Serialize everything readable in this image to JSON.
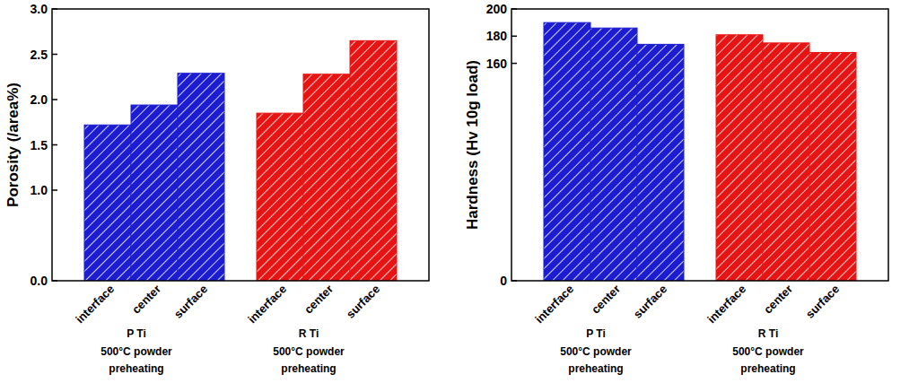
{
  "chart_data": [
    {
      "type": "bar",
      "ylabel": "Porosity (/area%)",
      "categories": [
        "interface",
        "center",
        "surface"
      ],
      "series": [
        {
          "name": "P Ti",
          "color": "#1c1cd2",
          "values": [
            1.72,
            1.94,
            2.29
          ]
        },
        {
          "name": "R Ti",
          "color": "#e81414",
          "values": [
            1.85,
            2.28,
            2.65
          ]
        }
      ],
      "annotation": [
        "500°C powder",
        "preheating"
      ],
      "ylim": [
        0,
        3
      ],
      "yticks": [
        {
          "value": 0,
          "label": "0.0"
        },
        {
          "value": 1,
          "label": "1.0"
        },
        1.5,
        {
          "value": 2,
          "label": "2.0"
        },
        2.5,
        {
          "value": 3,
          "label": "3.0"
        }
      ],
      "grid": false
    },
    {
      "type": "bar",
      "ylabel": "Hardness (Hv 10g load)",
      "categories": [
        "interface",
        "center",
        "surface"
      ],
      "series": [
        {
          "name": "P Ti",
          "color": "#1c1cd2",
          "values": [
            190,
            186,
            174
          ]
        },
        {
          "name": "R Ti",
          "color": "#e81414",
          "values": [
            181,
            175,
            168
          ]
        }
      ],
      "annotation": [
        "500°C powder",
        "preheating"
      ],
      "ylim": [
        0,
        200
      ],
      "yticks": [
        0,
        160,
        180,
        200
      ],
      "grid": false
    }
  ]
}
